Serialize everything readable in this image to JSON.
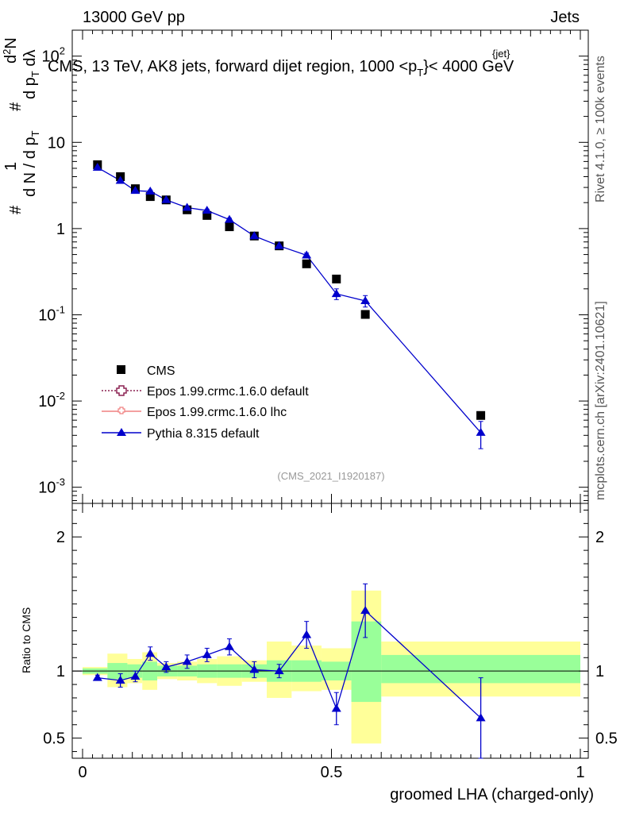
{
  "header": {
    "left": "13000 GeV pp",
    "right": "Jets",
    "title": "CMS, 13 TeV, AK8 jets, forward dijet region, 1000 <p",
    "title_sup": "{jet}",
    "title_sub": "T",
    "title_end": "}< 4000 GeV"
  },
  "side": {
    "rivet": "Rivet 4.1.0, ≥ 100k events",
    "mcplots": "mcplots.cern.ch [arXiv:2401.10621]"
  },
  "watermark": "(CMS_2021_I1920187)",
  "ylabel_main": {
    "hash1": "#",
    "one": "1",
    "denom": "d N / d p",
    "denom_sub": "T",
    "hash2": "#",
    "num": "d",
    "num_sup": "2",
    "num_n": "N",
    "den2": "d p",
    "den2_sub": "T",
    "den2_l": " dλ"
  },
  "ylabel_ratio": "Ratio to CMS",
  "xlabel": "groomed LHA (charged-only)",
  "colors": {
    "cms": "#000000",
    "epos_default": "#8b2252",
    "epos_lhc": "#f08080",
    "pythia": "#0000cc",
    "band_inner": "#99ff99",
    "band_outer": "#ffff99"
  },
  "chart_data": {
    "type": "scatter",
    "x_edges": [
      0,
      0.05,
      0.09,
      0.12,
      0.15,
      0.19,
      0.23,
      0.27,
      0.32,
      0.37,
      0.42,
      0.48,
      0.54,
      0.6,
      1.0
    ],
    "x_centers": [
      0.03,
      0.076,
      0.106,
      0.136,
      0.168,
      0.21,
      0.25,
      0.295,
      0.345,
      0.395,
      0.45,
      0.51,
      0.568,
      0.8
    ],
    "xlim": [
      0,
      1
    ],
    "xticks": [
      "0",
      "0.5",
      "1"
    ],
    "main": {
      "yscale": "log",
      "ylim": [
        0.00065,
        200
      ],
      "yticks": [
        {
          "v": 0.001,
          "base": "10",
          "exp": "-3"
        },
        {
          "v": 0.01,
          "base": "10",
          "exp": "-2"
        },
        {
          "v": 0.1,
          "base": "10",
          "exp": "-1"
        },
        {
          "v": 1,
          "base": "1",
          "exp": ""
        },
        {
          "v": 10,
          "base": "10",
          "exp": ""
        },
        {
          "v": 100,
          "base": "10",
          "exp": "2"
        }
      ]
    },
    "series": [
      {
        "name": "CMS",
        "values": [
          5.5,
          4.0,
          2.9,
          2.35,
          2.15,
          1.65,
          1.42,
          1.05,
          0.82,
          0.63,
          0.39,
          0.26,
          0.101,
          0.0068
        ]
      },
      {
        "name": "Epos 1.99.crmc.1.6.0 default",
        "values": []
      },
      {
        "name": "Epos 1.99.crmc.1.6.0 lhc",
        "values": []
      },
      {
        "name": "Pythia 8.315 default",
        "values": [
          5.1,
          3.6,
          2.75,
          2.7,
          2.15,
          1.75,
          1.62,
          1.27,
          0.82,
          0.63,
          0.49,
          0.175,
          0.145,
          0.0043
        ],
        "err": [
          0.1,
          0.15,
          0.1,
          0.1,
          0.06,
          0.06,
          0.06,
          0.05,
          0.03,
          0.025,
          0.03,
          0.025,
          0.022,
          0.0015
        ]
      }
    ],
    "ratio": {
      "ylim": [
        0.35,
        2.25
      ],
      "yticks": [
        "0.5",
        "1",
        "2"
      ],
      "ylabel": "Ratio to CMS",
      "values": [
        0.95,
        0.93,
        0.96,
        1.13,
        1.03,
        1.07,
        1.12,
        1.18,
        1.01,
        1.0,
        1.27,
        0.72,
        1.45,
        0.65
      ],
      "err": [
        0.02,
        0.05,
        0.04,
        0.05,
        0.04,
        0.05,
        0.05,
        0.06,
        0.06,
        0.05,
        0.1,
        0.12,
        0.2,
        0.3
      ],
      "band_inner": [
        [
          0.98,
          1.02
        ],
        [
          0.94,
          1.06
        ],
        [
          0.95,
          1.05
        ],
        [
          0.93,
          1.07
        ],
        [
          0.96,
          1.04
        ],
        [
          0.96,
          1.04
        ],
        [
          0.95,
          1.05
        ],
        [
          0.95,
          1.05
        ],
        [
          0.95,
          1.05
        ],
        [
          0.92,
          1.08
        ],
        [
          0.92,
          1.08
        ],
        [
          0.93,
          1.07
        ],
        [
          0.77,
          1.37
        ],
        [
          0.91,
          1.12
        ]
      ],
      "band_outer": [
        [
          0.97,
          1.03
        ],
        [
          0.88,
          1.13
        ],
        [
          0.91,
          1.09
        ],
        [
          0.86,
          1.14
        ],
        [
          0.94,
          1.06
        ],
        [
          0.93,
          1.07
        ],
        [
          0.91,
          1.09
        ],
        [
          0.89,
          1.11
        ],
        [
          0.92,
          1.08
        ],
        [
          0.8,
          1.22
        ],
        [
          0.85,
          1.19
        ],
        [
          0.86,
          1.17
        ],
        [
          0.46,
          1.6
        ],
        [
          0.81,
          1.22
        ]
      ]
    }
  }
}
